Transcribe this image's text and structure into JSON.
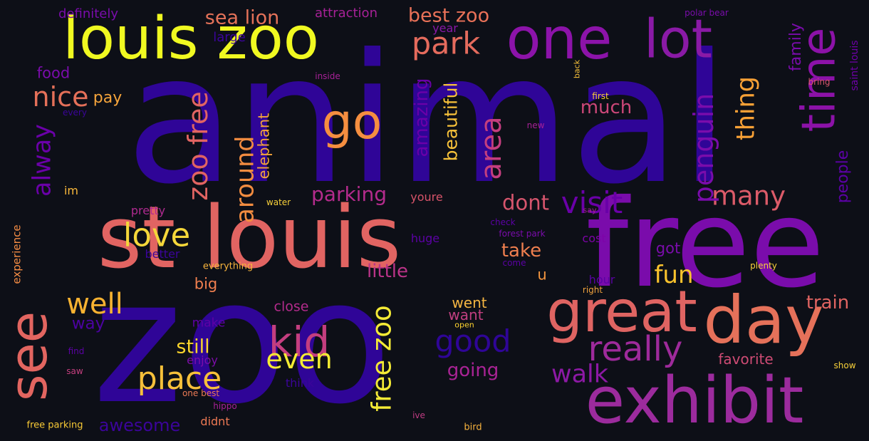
{
  "words": [
    {
      "text": "animal",
      "color": "#2f0597"
    },
    {
      "text": "zoo",
      "color": "#2f0597"
    },
    {
      "text": "st louis",
      "color": "#e16462"
    },
    {
      "text": "free",
      "color": "#7a0cab"
    },
    {
      "text": "louis zoo",
      "color": "#f0f921"
    },
    {
      "text": "exhibit",
      "color": "#9c2b9d"
    },
    {
      "text": "one",
      "color": "#8c13a9"
    },
    {
      "text": "lot",
      "color": "#8a1aa6"
    },
    {
      "text": "day",
      "color": "#e5715a"
    },
    {
      "text": "great",
      "color": "#df6462"
    },
    {
      "text": "see",
      "color": "#e26560"
    },
    {
      "text": "time",
      "color": "#8c12a8"
    },
    {
      "text": "go",
      "color": "#f58e40"
    },
    {
      "text": "place",
      "color": "#f7c03a"
    },
    {
      "text": "kid",
      "color": "#c43e7f"
    },
    {
      "text": "really",
      "color": "#9e2a9b"
    },
    {
      "text": "love",
      "color": "#f5d73a"
    },
    {
      "text": "well",
      "color": "#f7b231"
    },
    {
      "text": "zoo free",
      "color": "#e16462"
    },
    {
      "text": "free zoo",
      "color": "#f4ea36"
    },
    {
      "text": "around",
      "color": "#f28c40"
    },
    {
      "text": "visit",
      "color": "#6a00a8"
    },
    {
      "text": "many",
      "color": "#dc5b69"
    },
    {
      "text": "park",
      "color": "#e56b5d"
    },
    {
      "text": "area",
      "color": "#c43e7f"
    },
    {
      "text": "good",
      "color": "#2f0597"
    },
    {
      "text": "even",
      "color": "#f4ec33"
    },
    {
      "text": "walk",
      "color": "#8d19a5"
    },
    {
      "text": "fun",
      "color": "#fbc32d"
    },
    {
      "text": "penguin",
      "color": "#7a0cab"
    },
    {
      "text": "thing",
      "color": "#f9a136"
    },
    {
      "text": "nice",
      "color": "#e47059"
    },
    {
      "text": "alway",
      "color": "#6a00a8"
    },
    {
      "text": "best zoo",
      "color": "#e97158"
    },
    {
      "text": "sea lion",
      "color": "#e47259"
    },
    {
      "text": "parking",
      "color": "#b42b8c"
    },
    {
      "text": "dont",
      "color": "#d6556d"
    },
    {
      "text": "little",
      "color": "#ba3388"
    },
    {
      "text": "take",
      "color": "#ef7f4f"
    },
    {
      "text": "still",
      "color": "#fbd52b"
    },
    {
      "text": "going",
      "color": "#a92395"
    },
    {
      "text": "much",
      "color": "#cc4778"
    },
    {
      "text": "amazing",
      "color": "#6a00a8"
    },
    {
      "text": "beautiful",
      "color": "#f8c23a"
    },
    {
      "text": "train",
      "color": "#e16462"
    },
    {
      "text": "awesome",
      "color": "#3b049a"
    },
    {
      "text": "elephant",
      "color": "#f2a33b"
    },
    {
      "text": "food",
      "color": "#7a0cab"
    },
    {
      "text": "pay",
      "color": "#f5a43b"
    },
    {
      "text": "family",
      "color": "#7a0cab"
    },
    {
      "text": "people",
      "color": "#5c01a6"
    },
    {
      "text": "got",
      "color": "#7a0cab"
    },
    {
      "text": "way",
      "color": "#4c02a1"
    },
    {
      "text": "big",
      "color": "#f07f4f"
    },
    {
      "text": "favorite",
      "color": "#ce4b74"
    },
    {
      "text": "went",
      "color": "#f4b542"
    },
    {
      "text": "want",
      "color": "#c13f80"
    },
    {
      "text": "close",
      "color": "#b42b8c"
    },
    {
      "text": "definitely",
      "color": "#7a0cab"
    },
    {
      "text": "attraction",
      "color": "#a72197"
    },
    {
      "text": "large",
      "color": "#3b049a"
    },
    {
      "text": "year",
      "color": "#8a18a7"
    },
    {
      "text": "im",
      "color": "#f9b83b"
    },
    {
      "text": "pretty",
      "color": "#b02a90"
    },
    {
      "text": "youre",
      "color": "#d65369"
    },
    {
      "text": "experience",
      "color": "#f68d45"
    },
    {
      "text": "better",
      "color": "#3b049a"
    },
    {
      "text": "everything",
      "color": "#f8b43c"
    },
    {
      "text": "make",
      "color": "#5f01a6"
    },
    {
      "text": "enjoy",
      "color": "#7c0da8"
    },
    {
      "text": "think",
      "color": "#3b049a"
    },
    {
      "text": "didnt",
      "color": "#ec7853"
    },
    {
      "text": "hour",
      "color": "#5902a3"
    },
    {
      "text": "cost",
      "color": "#7e03a8"
    },
    {
      "text": "huge",
      "color": "#5c01a6"
    },
    {
      "text": "u",
      "color": "#f4953f"
    },
    {
      "text": "saint louis",
      "color": "#6f00a8"
    },
    {
      "text": "polar bear",
      "color": "#7a0cab"
    },
    {
      "text": "inside",
      "color": "#a72197"
    },
    {
      "text": "back",
      "color": "#f8c23a"
    },
    {
      "text": "first",
      "color": "#f8cd36"
    },
    {
      "text": "bring",
      "color": "#d8576b"
    },
    {
      "text": "new",
      "color": "#a72197"
    },
    {
      "text": "every",
      "color": "#3b049a"
    },
    {
      "text": "water",
      "color": "#f7d03a"
    },
    {
      "text": "check",
      "color": "#5c01a6"
    },
    {
      "text": "forest park",
      "color": "#7a0cab"
    },
    {
      "text": "come",
      "color": "#5c01a6"
    },
    {
      "text": "say",
      "color": "#a72197"
    },
    {
      "text": "right",
      "color": "#f1a23d"
    },
    {
      "text": "plenty",
      "color": "#f8d13a"
    },
    {
      "text": "open",
      "color": "#fcd22f"
    },
    {
      "text": "show",
      "color": "#f8d13a"
    },
    {
      "text": "find",
      "color": "#5c01a6"
    },
    {
      "text": "saw",
      "color": "#c53f7f"
    },
    {
      "text": "one best",
      "color": "#ea7a55"
    },
    {
      "text": "hippo",
      "color": "#a72197"
    },
    {
      "text": "ive",
      "color": "#c03c83"
    },
    {
      "text": "bird",
      "color": "#f7b23d"
    },
    {
      "text": "free parking",
      "color": "#f8ca36"
    }
  ]
}
